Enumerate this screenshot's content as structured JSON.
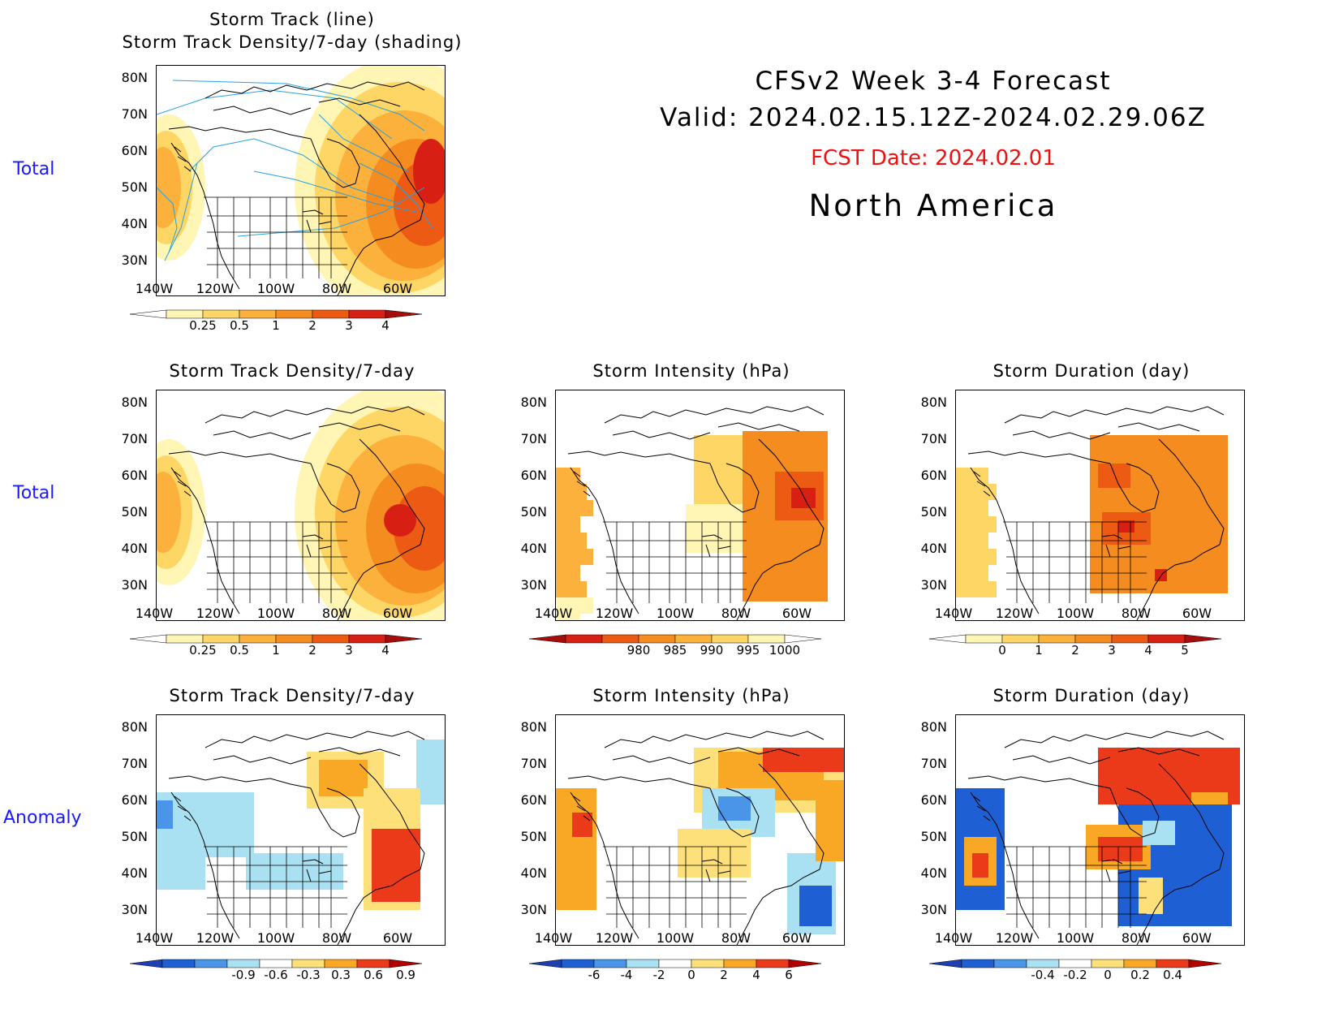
{
  "header": {
    "title_line1": "CFSv2 Week 3-4 Forecast",
    "title_line2": "Valid: 2024.02.15.12Z-2024.02.29.06Z",
    "fcst_date": "FCST Date: 2024.02.01",
    "region": "North America"
  },
  "row_labels": [
    "Total",
    "Total",
    "Anomaly"
  ],
  "axes": {
    "lat_ticks": [
      "80N",
      "70N",
      "60N",
      "50N",
      "40N",
      "30N"
    ],
    "lon_ticks": [
      "140W",
      "120W",
      "100W",
      "80W",
      "60W"
    ]
  },
  "panels": {
    "top": {
      "title1": "Storm Track (line)",
      "title2": "Storm Track Density/7-day (shading)",
      "colorbar": [
        "0.25",
        "0.5",
        "1",
        "2",
        "3",
        "4"
      ]
    },
    "total_density": {
      "title": "Storm Track Density/7-day",
      "colorbar": [
        "0.25",
        "0.5",
        "1",
        "2",
        "3",
        "4"
      ]
    },
    "total_intensity": {
      "title": "Storm Intensity (hPa)",
      "colorbar": [
        "980",
        "985",
        "990",
        "995",
        "1000"
      ]
    },
    "total_duration": {
      "title": "Storm Duration (day)",
      "colorbar": [
        "0",
        "1",
        "2",
        "3",
        "4",
        "5"
      ]
    },
    "anom_density": {
      "title": "Storm Track Density/7-day",
      "colorbar": [
        "-0.9",
        "-0.6",
        "-0.3",
        "0.3",
        "0.6",
        "0.9"
      ]
    },
    "anom_intensity": {
      "title": "Storm Intensity (hPa)",
      "colorbar": [
        "-6",
        "-4",
        "-2",
        "0",
        "2",
        "4",
        "6"
      ]
    },
    "anom_duration": {
      "title": "Storm Duration (day)",
      "colorbar": [
        "-0.4",
        "-0.2",
        "0",
        "0.2",
        "0.4"
      ]
    }
  },
  "colors": {
    "row_label": "#1a1aff",
    "fcst_date": "#ee1111",
    "warm_scale": [
      "#fff6b5",
      "#fdd666",
      "#fbb13c",
      "#f58c1f",
      "#ec5a14",
      "#d81f14",
      "#a50d0d"
    ],
    "anom_scale": [
      "#1e5fd4",
      "#4a95e8",
      "#a9e1f2",
      "#ffffff",
      "#fde07a",
      "#f9a826",
      "#ea3a1a"
    ]
  }
}
